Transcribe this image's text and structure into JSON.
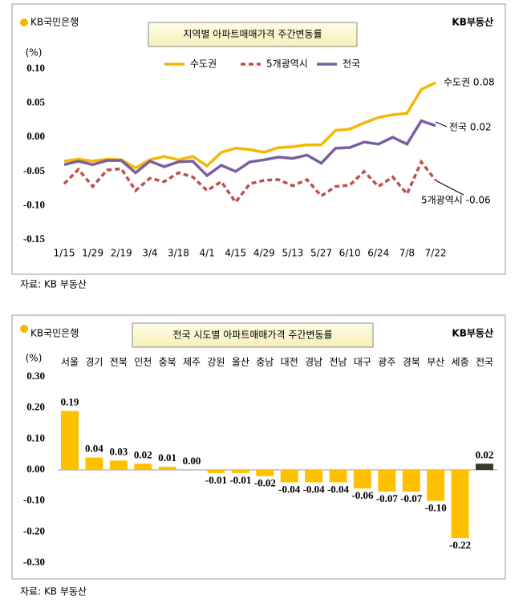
{
  "chart_data": [
    {
      "type": "line",
      "title": "지역별 아파트매매가격 주간변동률",
      "logo": "KB국민은행",
      "brand": "KB부동산",
      "y_unit": "(%)",
      "source": "자료: KB 부동산",
      "categories": [
        "1/15",
        null,
        "1/29",
        null,
        "2/19",
        null,
        "3/4",
        null,
        "3/18",
        null,
        "4/1",
        null,
        "4/15",
        null,
        "4/29",
        null,
        "5/13",
        null,
        "5/27",
        null,
        "6/10",
        null,
        "6/24",
        null,
        "7/8",
        null,
        "7/22"
      ],
      "series": [
        {
          "name": "수도권",
          "color": "#f5b800",
          "line_style": "solid",
          "values": [
            -0.035,
            -0.032,
            -0.035,
            -0.032,
            -0.033,
            -0.045,
            -0.033,
            -0.028,
            -0.033,
            -0.028,
            -0.042,
            -0.022,
            -0.016,
            -0.018,
            -0.022,
            -0.015,
            -0.014,
            -0.011,
            -0.011,
            0.01,
            0.012,
            0.021,
            0.029,
            0.033,
            0.035,
            0.07,
            0.08
          ]
        },
        {
          "name": "5개광역시",
          "color": "#c0504d",
          "line_style": "dashed",
          "values": [
            -0.068,
            -0.047,
            -0.072,
            -0.048,
            -0.046,
            -0.078,
            -0.06,
            -0.065,
            -0.052,
            -0.058,
            -0.078,
            -0.065,
            -0.095,
            -0.068,
            -0.063,
            -0.062,
            -0.071,
            -0.062,
            -0.086,
            -0.072,
            -0.07,
            -0.05,
            -0.072,
            -0.058,
            -0.083,
            -0.036,
            -0.063
          ]
        },
        {
          "name": "전국",
          "color": "#7a5fa0",
          "line_style": "solid",
          "values": [
            -0.04,
            -0.035,
            -0.04,
            -0.034,
            -0.034,
            -0.052,
            -0.035,
            -0.043,
            -0.036,
            -0.035,
            -0.056,
            -0.041,
            -0.05,
            -0.036,
            -0.033,
            -0.029,
            -0.031,
            -0.026,
            -0.038,
            -0.016,
            -0.015,
            -0.007,
            -0.01,
            0,
            -0.01,
            0.024,
            0.017
          ]
        }
      ],
      "annotations": [
        "수도권 0.08",
        "전국 0.02",
        "5개광역시 -0.06"
      ],
      "ylim": [
        -0.15,
        0.1
      ],
      "yticks": [
        {
          "value": 0.1,
          "label": "0.10"
        },
        {
          "value": 0.05,
          "label": "0.05"
        },
        {
          "value": 0,
          "label": "0.00"
        },
        {
          "value": -0.05,
          "label": "-0.05"
        },
        {
          "value": -0.1,
          "label": "-0.10"
        },
        {
          "value": -0.15,
          "label": "-0.15"
        }
      ],
      "legend": "top",
      "grid": false
    },
    {
      "type": "bar",
      "title": "전국 시도별 아파트매매가격 주간변동률",
      "logo": "KB국민은행",
      "brand": "KB부동산",
      "y_unit": "(%)",
      "source": "자료: KB 부동산",
      "categories": [
        "서울",
        "경기",
        "전북",
        "인천",
        "충북",
        "제주",
        "강원",
        "울산",
        "충남",
        "대전",
        "경남",
        "전남",
        "대구",
        "광주",
        "경북",
        "부산",
        "세종",
        "전국"
      ],
      "values": [
        0.19,
        0.04,
        0.03,
        0.02,
        0.01,
        0,
        -0.01,
        -0.01,
        -0.02,
        -0.04,
        -0.04,
        -0.04,
        -0.06,
        -0.07,
        -0.07,
        -0.1,
        -0.22,
        0.02
      ],
      "value_labels": [
        "0.19",
        "0.04",
        "0.03",
        "0.02",
        "0.01",
        "0.00",
        "-0.01",
        "-0.01",
        "-0.02",
        "-0.04",
        "-0.04",
        "-0.04",
        "-0.06",
        "-0.07",
        "-0.07",
        "-0.10",
        "-0.22",
        "0.02"
      ],
      "colors": [
        "#ffc000",
        "#ffc000",
        "#ffc000",
        "#ffc000",
        "#ffc000",
        "#ffc000",
        "#ffc000",
        "#ffc000",
        "#ffc000",
        "#ffc000",
        "#ffc000",
        "#ffc000",
        "#ffc000",
        "#ffc000",
        "#ffc000",
        "#ffc000",
        "#ffc000",
        "#3b3a2a"
      ],
      "ylim": [
        -0.3,
        0.3
      ],
      "yticks": [
        {
          "value": 0.3,
          "label": "0.30"
        },
        {
          "value": 0.2,
          "label": "0.20"
        },
        {
          "value": 0.1,
          "label": "0.10"
        },
        {
          "value": 0,
          "label": "0.00"
        },
        {
          "value": -0.1,
          "label": "-0.10"
        },
        {
          "value": -0.2,
          "label": "-0.20"
        },
        {
          "value": -0.3,
          "label": "-0.30"
        }
      ],
      "grid": false
    }
  ]
}
